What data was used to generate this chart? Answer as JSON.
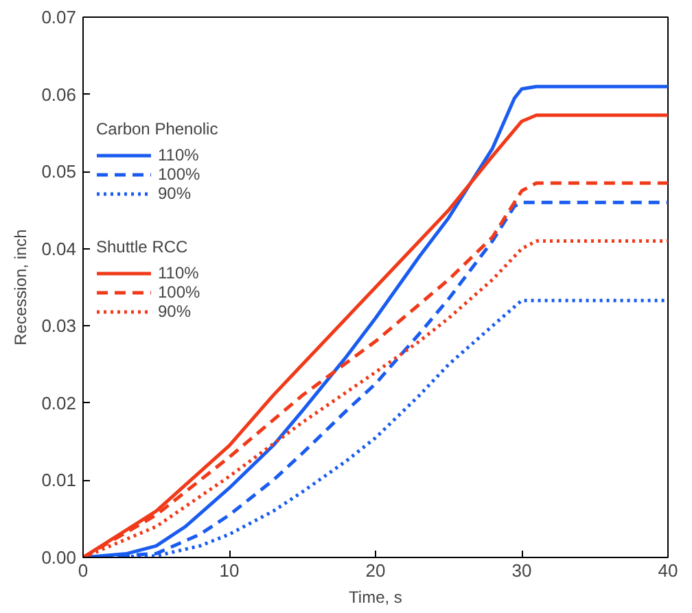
{
  "chart_data": {
    "type": "line",
    "xlabel": "Time, s",
    "ylabel": "Recession, inch",
    "xlim": [
      0,
      40
    ],
    "ylim": [
      0,
      0.07
    ],
    "xticks": [
      0,
      10,
      20,
      30,
      40
    ],
    "yticks": [
      {
        "value": 0,
        "label": "0.00"
      },
      {
        "value": 0.01,
        "label": "0.01"
      },
      {
        "value": 0.02,
        "label": "0.02"
      },
      {
        "value": 0.03,
        "label": "0.03"
      },
      {
        "value": 0.04,
        "label": "0.04"
      },
      {
        "value": 0.05,
        "label": "0.05"
      },
      {
        "value": 0.06,
        "label": "0.06"
      },
      {
        "value": 0.07,
        "label": "0.07"
      }
    ],
    "grid": false,
    "legend": "top left",
    "marker": "none",
    "annotations": [
      "Carbon Phenolic",
      "Shuttle RCC"
    ],
    "series": [
      {
        "name": "110%",
        "color": "#1a5cf0",
        "line_style": "solid",
        "x": [
          0,
          3,
          5,
          7,
          10,
          13,
          15,
          18,
          20,
          23,
          25,
          28,
          29.5,
          30,
          31,
          40
        ],
        "values": [
          0,
          0.0005,
          0.0015,
          0.004,
          0.009,
          0.0145,
          0.019,
          0.026,
          0.031,
          0.039,
          0.044,
          0.053,
          0.0595,
          0.0607,
          0.061,
          0.061
        ]
      },
      {
        "name": "100%",
        "color": "#1a5cf0",
        "line_style": "dashed",
        "x": [
          0,
          5,
          8,
          10,
          13,
          15,
          18,
          20,
          23,
          25,
          28,
          29.5,
          30,
          40
        ],
        "values": [
          0,
          0.0005,
          0.003,
          0.0055,
          0.01,
          0.0135,
          0.019,
          0.0225,
          0.029,
          0.0335,
          0.041,
          0.0455,
          0.046,
          0.046
        ]
      },
      {
        "name": "90%",
        "color": "#1a5cf0",
        "line_style": "dotted",
        "x": [
          0,
          5,
          8,
          10,
          13,
          15,
          18,
          20,
          23,
          25,
          28,
          30,
          40
        ],
        "values": [
          0,
          0.0002,
          0.0015,
          0.003,
          0.006,
          0.0085,
          0.0125,
          0.0155,
          0.021,
          0.025,
          0.03,
          0.0333,
          0.0333
        ]
      },
      {
        "name": "110%",
        "color": "#f03a1a",
        "line_style": "solid",
        "x": [
          0,
          5,
          10,
          13,
          15,
          18,
          20,
          23,
          25,
          28,
          30,
          31,
          40
        ],
        "values": [
          0,
          0.006,
          0.0145,
          0.021,
          0.025,
          0.031,
          0.035,
          0.041,
          0.045,
          0.052,
          0.0565,
          0.0573,
          0.0573
        ]
      },
      {
        "name": "100%",
        "color": "#f03a1a",
        "line_style": "dashed",
        "x": [
          0,
          5,
          10,
          15,
          20,
          25,
          28,
          30,
          31,
          40
        ],
        "values": [
          0,
          0.0055,
          0.013,
          0.021,
          0.028,
          0.036,
          0.0415,
          0.0475,
          0.0485,
          0.0485
        ]
      },
      {
        "name": "90%",
        "color": "#f03a1a",
        "line_style": "dotted",
        "x": [
          0,
          5,
          10,
          15,
          20,
          23,
          25,
          28,
          30,
          31,
          40
        ],
        "values": [
          0,
          0.004,
          0.0105,
          0.0175,
          0.024,
          0.028,
          0.031,
          0.036,
          0.04,
          0.041,
          0.041
        ]
      }
    ]
  }
}
